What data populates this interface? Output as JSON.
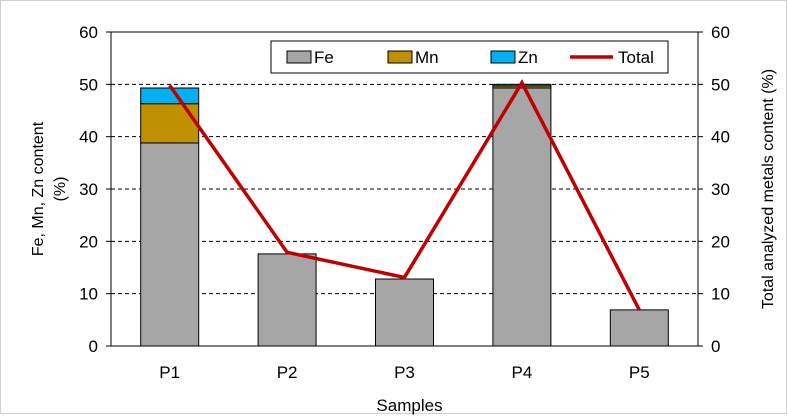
{
  "chart_data": {
    "type": "bar",
    "categories": [
      "P1",
      "P2",
      "P3",
      "P4",
      "P5"
    ],
    "series": [
      {
        "name": "Fe",
        "type": "stacked-bar",
        "color": "#a6a6a6",
        "values": [
          38.8,
          17.6,
          12.8,
          49.3,
          6.9
        ]
      },
      {
        "name": "Mn",
        "type": "stacked-bar",
        "color": "#bf9000",
        "values": [
          7.5,
          0.0,
          0.0,
          0.4,
          0.0
        ]
      },
      {
        "name": "Zn",
        "type": "stacked-bar",
        "color": "#00b0f0",
        "values": [
          3.0,
          0.0,
          0.0,
          0.3,
          0.0
        ]
      },
      {
        "name": "Total",
        "type": "line",
        "color": "#c00000",
        "values": [
          49.8,
          17.9,
          13.1,
          50.3,
          6.9
        ]
      }
    ],
    "xlabel": "Samples",
    "ylabel_left": [
      "Fe, Mn, Zn content",
      "(%)"
    ],
    "ylabel_right": "Total analyzed metals content (%)",
    "ylim": [
      0,
      60
    ],
    "yticks": [
      0,
      10,
      20,
      30,
      40,
      50,
      60
    ],
    "grid": "horizontal dashed",
    "legend_placement": "top-right"
  }
}
